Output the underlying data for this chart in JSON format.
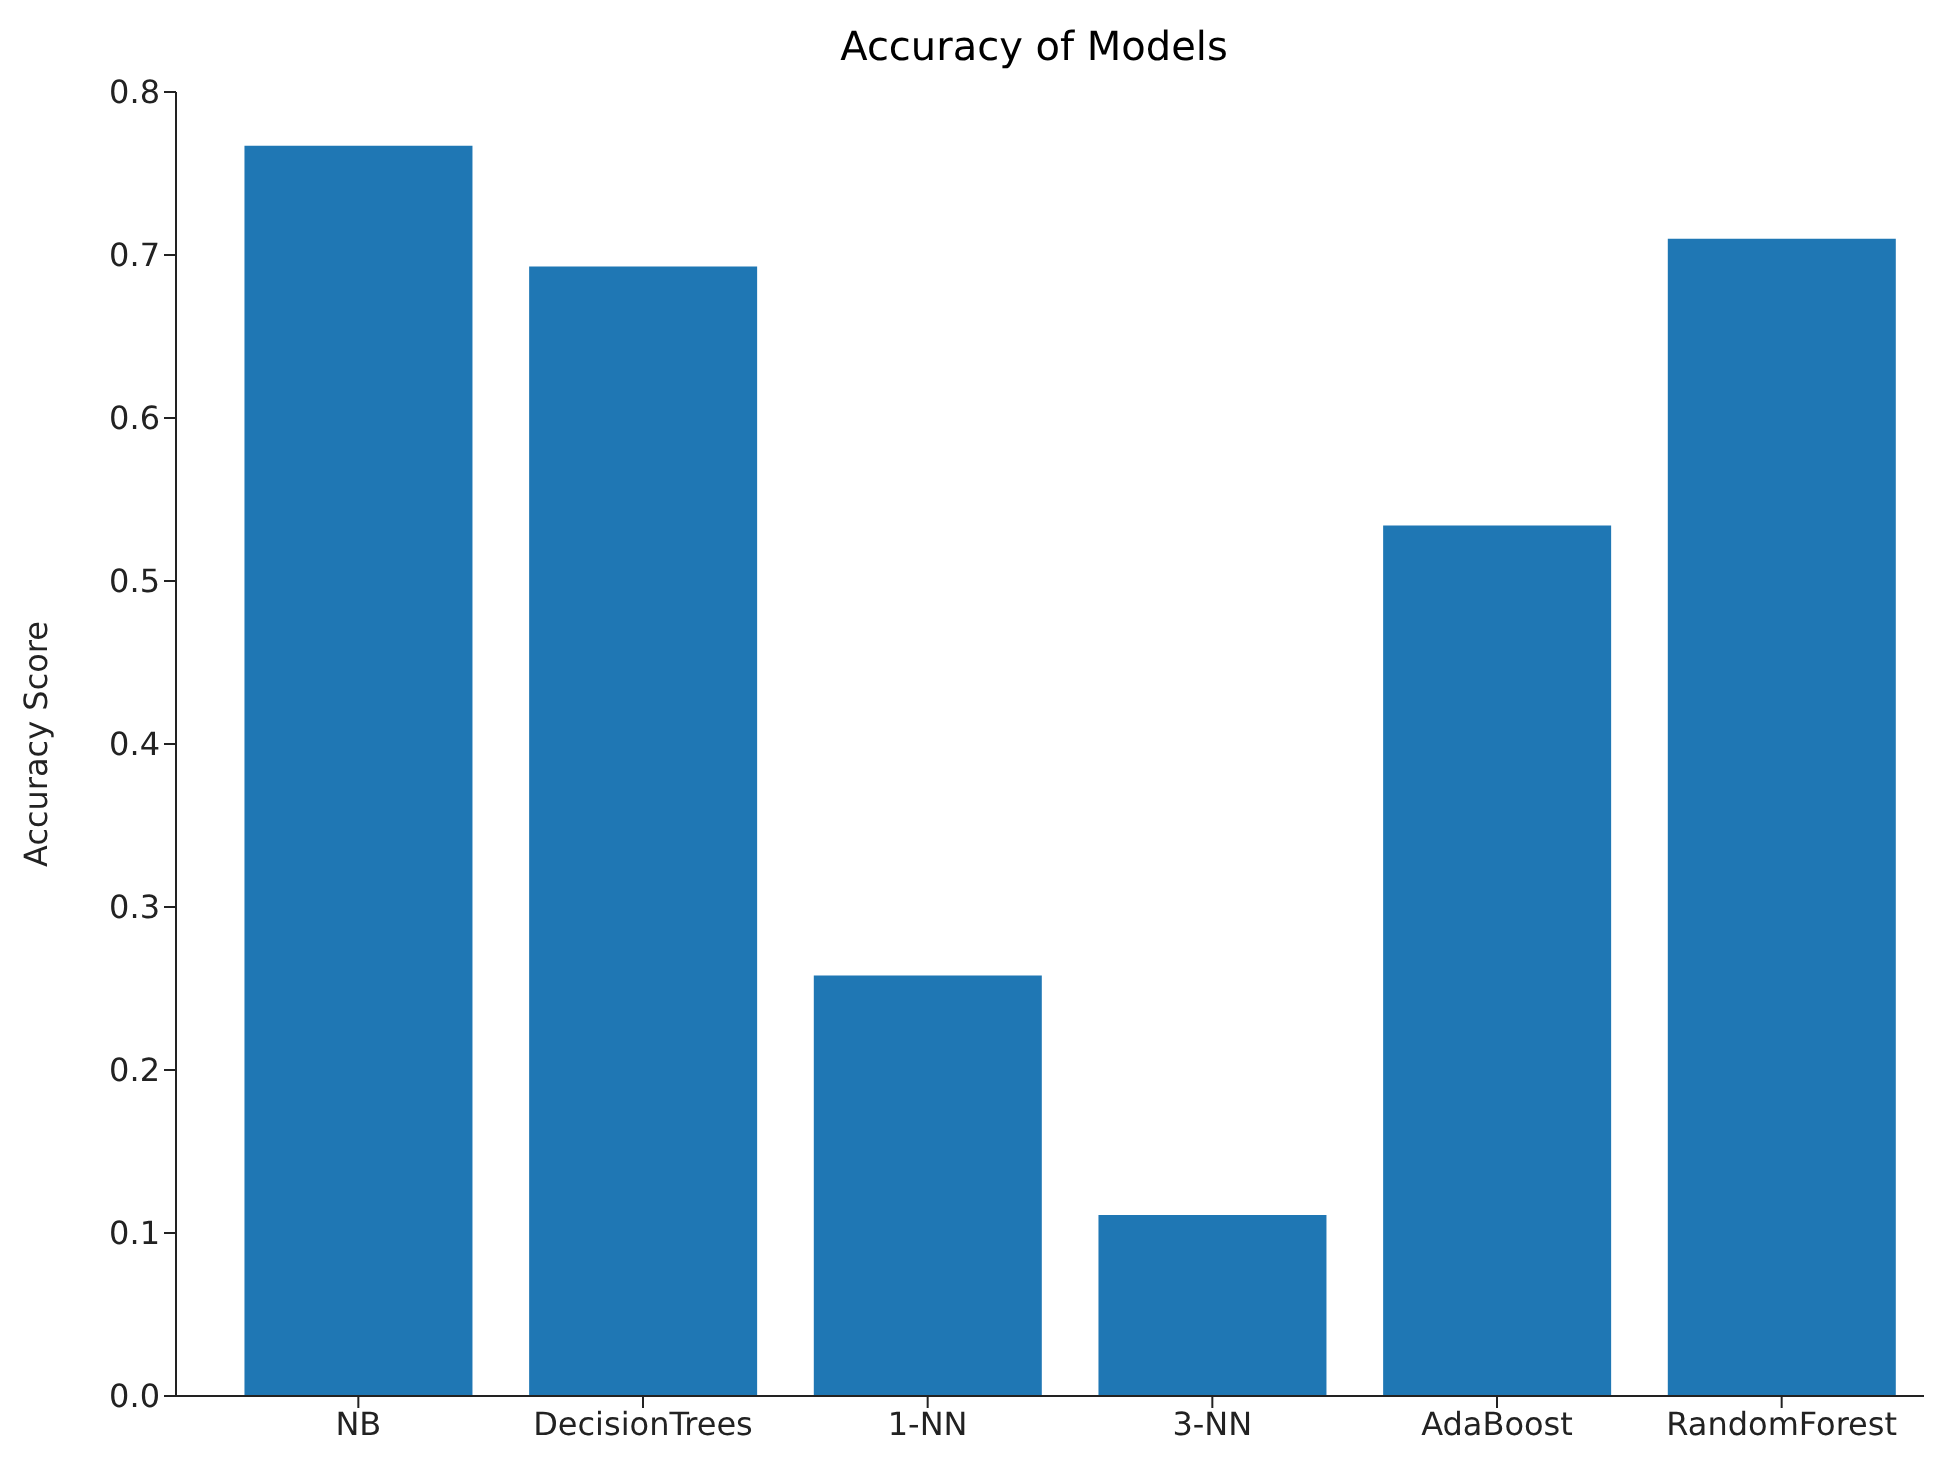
{
  "chart_data": {
    "type": "bar",
    "title": "Accuracy of Models",
    "ylabel": "Accuracy Score",
    "categories": [
      "NB",
      "DecisionTrees",
      "1-NN",
      "3-NN",
      "AdaBoost",
      "RandomForest"
    ],
    "values": [
      0.767,
      0.693,
      0.258,
      0.111,
      0.534,
      0.71
    ],
    "color": "#1f77b4",
    "ylim": [
      0,
      0.8
    ],
    "yticks": [
      {
        "value": 0,
        "label": "0.0"
      },
      0.1,
      0.2,
      0.3,
      0.4,
      0.5,
      0.6,
      0.7,
      0.8
    ],
    "grid": false
  }
}
